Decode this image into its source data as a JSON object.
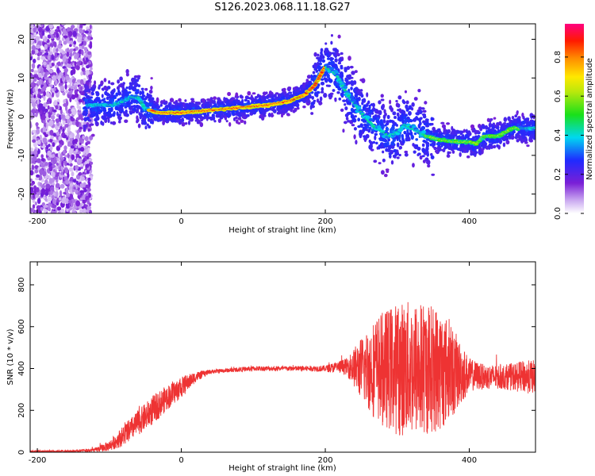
{
  "chart_data": [
    {
      "type": "heatmap",
      "title": "S126.2023.068.11.18.G27",
      "xlabel": "Height of straight line (km)",
      "ylabel": "Frequency (Hz)",
      "xlim": [
        -210,
        492
      ],
      "ylim": [
        -25,
        24
      ],
      "xticks": [
        -200,
        0,
        200,
        400
      ],
      "yticks": [
        -20,
        -10,
        0,
        10,
        20
      ],
      "grid": false,
      "colorbar": {
        "label": "Normalized spectral amplitude",
        "range": [
          0,
          0.97
        ],
        "ticks": [
          0.0,
          0.2,
          0.4,
          0.6,
          0.8
        ]
      },
      "ridge": {
        "description_free": true,
        "x": [
          -130,
          -110,
          -95,
          -80,
          -70,
          -60,
          -50,
          -40,
          -30,
          -10,
          0,
          30,
          60,
          90,
          120,
          150,
          170,
          185,
          200,
          215,
          230,
          250,
          270,
          290,
          300,
          310,
          320,
          340,
          360,
          380,
          400,
          410,
          420,
          440,
          460,
          480,
          492
        ],
        "y": [
          3,
          3,
          3,
          4,
          5,
          5,
          2,
          1.5,
          1,
          1,
          1,
          1.5,
          2,
          2.5,
          3,
          4,
          5.5,
          8,
          13,
          11,
          6,
          1,
          -3,
          -5,
          -4,
          -2,
          -3,
          -5,
          -6,
          -6.5,
          -6.5,
          -7,
          -5,
          -5,
          -3,
          -3,
          -3
        ]
      }
    },
    {
      "type": "line",
      "title": "",
      "xlabel": "Height of straight line (km)",
      "ylabel": "SNR (10 * v/v)",
      "xlim": [
        -210,
        492
      ],
      "ylim": [
        0,
        910
      ],
      "xticks": [
        -200,
        0,
        200,
        400
      ],
      "yticks": [
        0,
        200,
        400,
        600,
        800
      ],
      "grid": false,
      "color": "#ee3333",
      "envelope": {
        "x": [
          -210,
          -150,
          -120,
          -100,
          -80,
          -60,
          -40,
          -20,
          0,
          20,
          40,
          60,
          100,
          150,
          200,
          230,
          250,
          270,
          300,
          330,
          360,
          380,
          400,
          420,
          450,
          480,
          492
        ],
        "center": [
          5,
          5,
          10,
          30,
          80,
          140,
          200,
          260,
          310,
          360,
          385,
          390,
          400,
          400,
          400,
          410,
          400,
          400,
          400,
          400,
          400,
          380,
          370,
          360,
          360,
          360,
          360
        ],
        "spread": [
          5,
          5,
          10,
          25,
          50,
          60,
          70,
          60,
          50,
          25,
          10,
          10,
          12,
          12,
          15,
          40,
          150,
          250,
          320,
          330,
          300,
          200,
          80,
          60,
          60,
          80,
          80
        ]
      }
    }
  ]
}
